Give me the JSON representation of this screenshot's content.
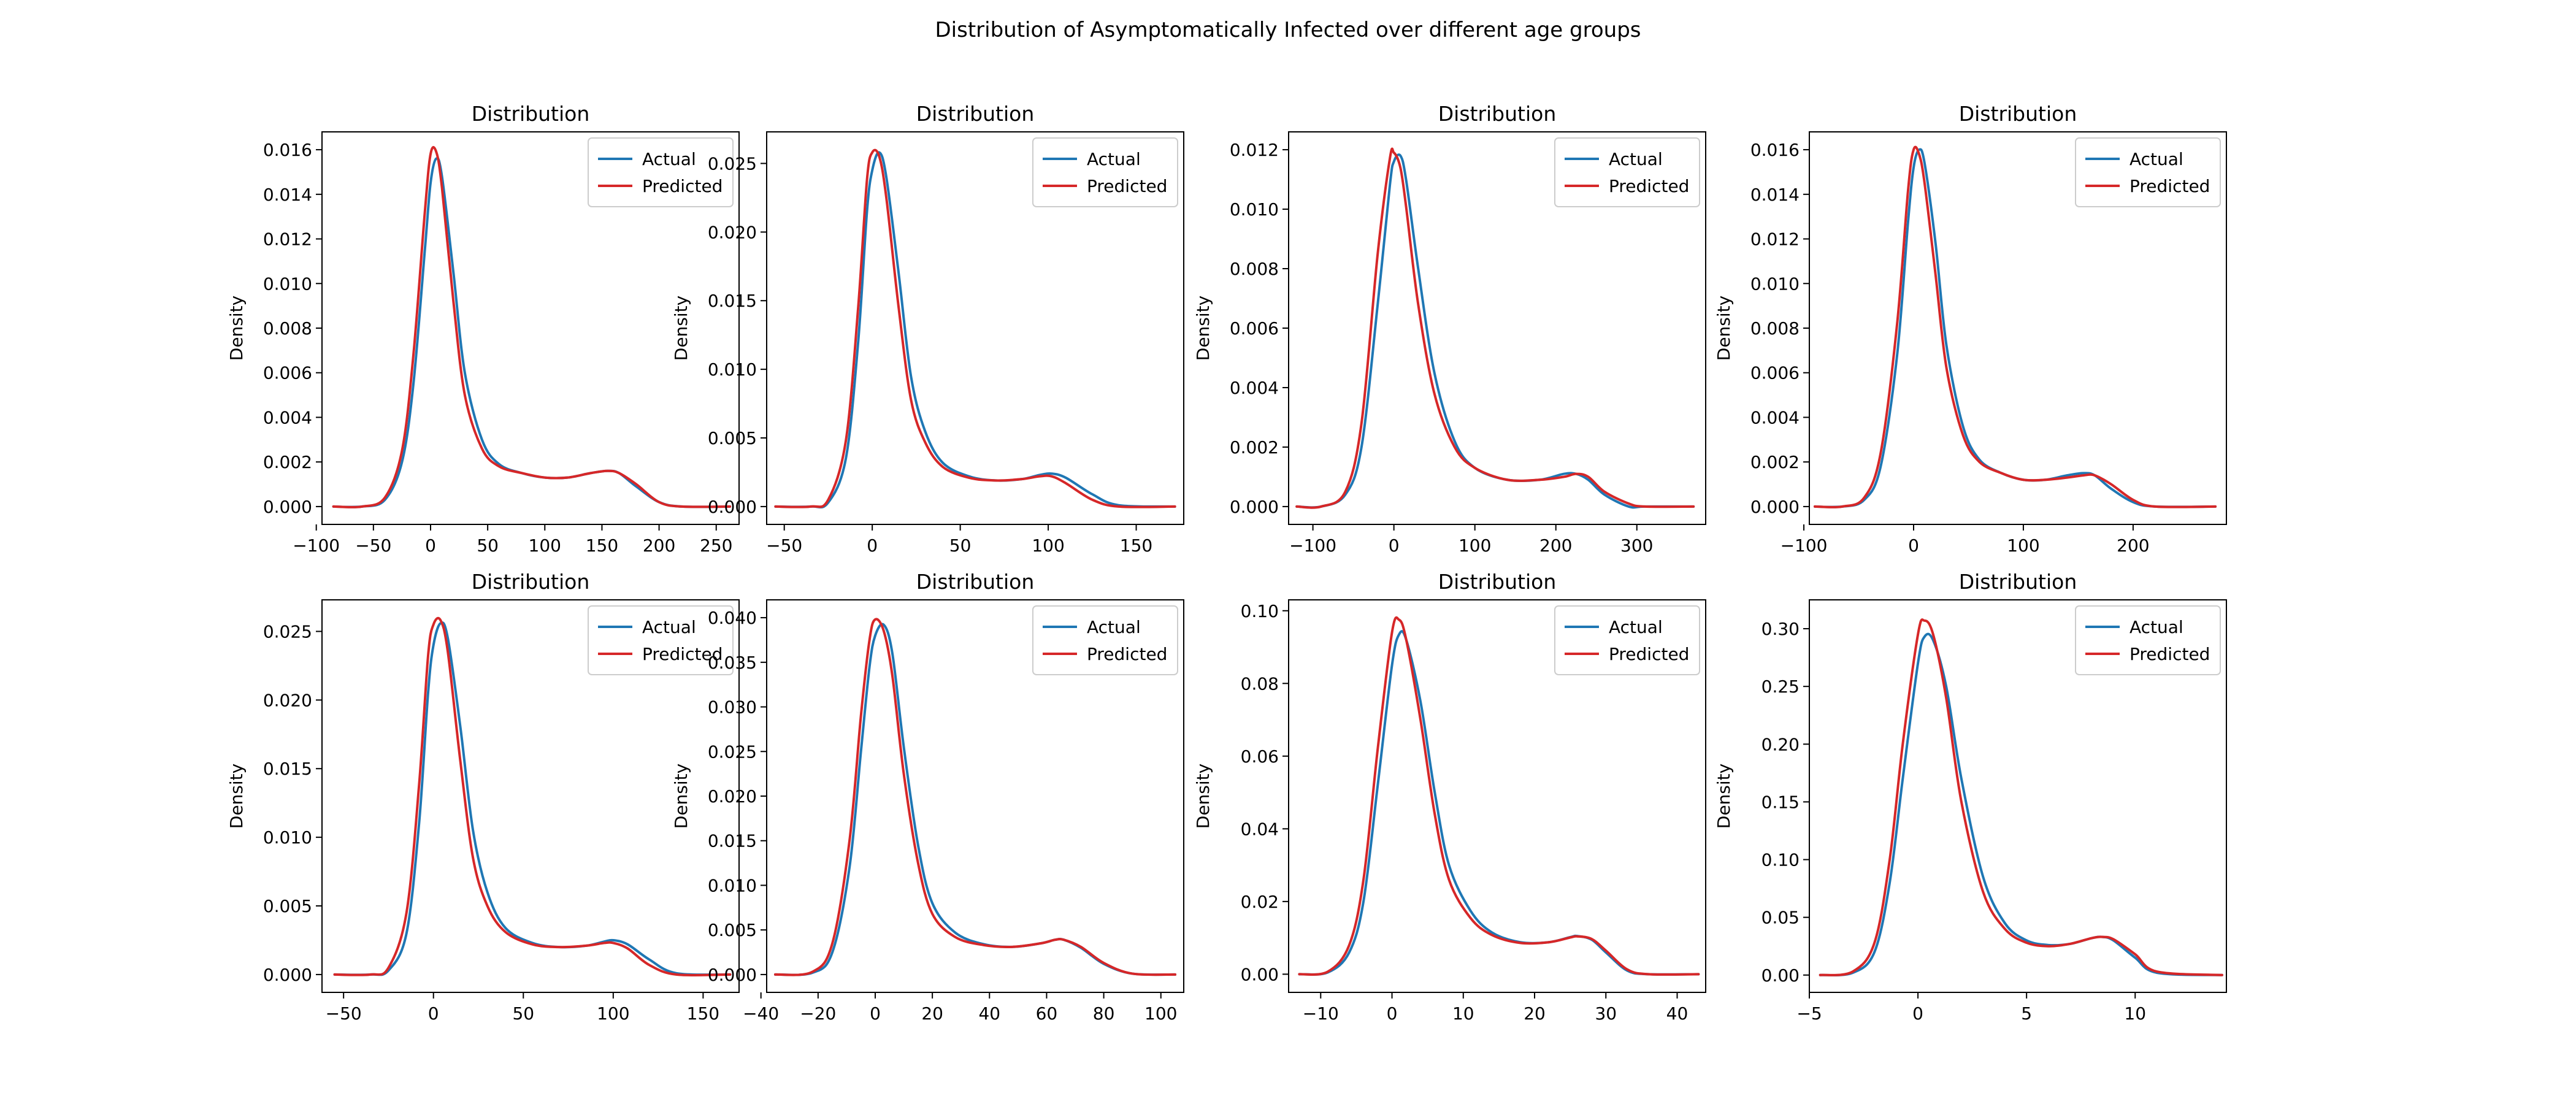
{
  "figure": {
    "title": "Distribution of Asymptomatically Infected over different age groups"
  },
  "colors": {
    "actual": "#1f77b4",
    "predicted": "#d62728"
  },
  "chart_data": [
    {
      "type": "line",
      "title": "Distribution",
      "xlabel": "",
      "ylabel": "Density",
      "xlim": [
        -95,
        270
      ],
      "ylim": [
        -0.0008,
        0.0168
      ],
      "xticks": [
        -100,
        -50,
        0,
        50,
        100,
        150,
        200,
        250
      ],
      "yticks": [
        0.0,
        0.002,
        0.004,
        0.006,
        0.008,
        0.01,
        0.012,
        0.014,
        0.016
      ],
      "ytick_labels": [
        "0.000",
        "0.002",
        "0.004",
        "0.006",
        "0.008",
        "0.010",
        "0.012",
        "0.014",
        "0.016"
      ],
      "legend": "top-right",
      "series": [
        {
          "name": "Actual",
          "x": [
            -85,
            -60,
            -40,
            -25,
            -15,
            -5,
            0,
            5,
            10,
            20,
            30,
            45,
            60,
            80,
            100,
            120,
            140,
            155,
            165,
            180,
            200,
            220,
            262
          ],
          "y": [
            0,
            0,
            0.0003,
            0.002,
            0.0055,
            0.0115,
            0.0145,
            0.0156,
            0.0148,
            0.0105,
            0.006,
            0.003,
            0.0019,
            0.0015,
            0.0013,
            0.0013,
            0.0015,
            0.0016,
            0.0015,
            0.0009,
            0.0002,
            0,
            0
          ]
        },
        {
          "name": "Predicted",
          "x": [
            -85,
            -60,
            -40,
            -25,
            -15,
            -5,
            0,
            5,
            10,
            20,
            30,
            45,
            60,
            80,
            100,
            120,
            140,
            155,
            165,
            180,
            200,
            220,
            262
          ],
          "y": [
            0,
            0,
            0.0004,
            0.0025,
            0.0068,
            0.0132,
            0.0158,
            0.0159,
            0.0143,
            0.0092,
            0.005,
            0.0026,
            0.0018,
            0.0015,
            0.0013,
            0.0013,
            0.0015,
            0.0016,
            0.0015,
            0.001,
            0.0002,
            0,
            0
          ]
        }
      ]
    },
    {
      "type": "line",
      "title": "Distribution",
      "xlabel": "",
      "ylabel": "Density",
      "xlim": [
        -60,
        177
      ],
      "ylim": [
        -0.0013,
        0.0273
      ],
      "xticks": [
        -50,
        0,
        50,
        100,
        150
      ],
      "yticks": [
        0.0,
        0.005,
        0.01,
        0.015,
        0.02,
        0.025
      ],
      "ytick_labels": [
        "0.000",
        "0.005",
        "0.010",
        "0.015",
        "0.020",
        "0.025"
      ],
      "legend": "top-right",
      "series": [
        {
          "name": "Actual",
          "x": [
            -55,
            -35,
            -25,
            -15,
            -8,
            -3,
            0,
            4,
            8,
            15,
            22,
            30,
            40,
            55,
            70,
            85,
            95,
            102,
            110,
            125,
            140,
            172
          ],
          "y": [
            0,
            0,
            0.0003,
            0.0035,
            0.012,
            0.0215,
            0.0245,
            0.0258,
            0.024,
            0.017,
            0.0095,
            0.0055,
            0.0032,
            0.0022,
            0.0019,
            0.002,
            0.0023,
            0.0024,
            0.0021,
            0.0009,
            0.0001,
            0
          ]
        },
        {
          "name": "Predicted",
          "x": [
            -55,
            -35,
            -25,
            -15,
            -8,
            -3,
            0,
            4,
            8,
            15,
            22,
            30,
            40,
            55,
            70,
            85,
            95,
            102,
            110,
            125,
            140,
            172
          ],
          "y": [
            0,
            0,
            0.0005,
            0.0048,
            0.0145,
            0.0238,
            0.0258,
            0.0255,
            0.0225,
            0.0145,
            0.0078,
            0.0047,
            0.0029,
            0.0021,
            0.0019,
            0.002,
            0.0022,
            0.0022,
            0.0017,
            0.0005,
            0,
            0
          ]
        }
      ]
    },
    {
      "type": "line",
      "title": "Distribution",
      "xlabel": "",
      "ylabel": "Density",
      "xlim": [
        -130,
        385
      ],
      "ylim": [
        -0.0006,
        0.0126
      ],
      "xticks": [
        -100,
        0,
        100,
        200,
        300
      ],
      "yticks": [
        0.0,
        0.002,
        0.004,
        0.006,
        0.008,
        0.01,
        0.012
      ],
      "ytick_labels": [
        "0.000",
        "0.002",
        "0.004",
        "0.006",
        "0.008",
        "0.010",
        "0.012"
      ],
      "legend": "top-right",
      "series": [
        {
          "name": "Actual",
          "x": [
            -120,
            -90,
            -60,
            -40,
            -20,
            -5,
            0,
            8,
            15,
            30,
            50,
            75,
            100,
            140,
            180,
            210,
            225,
            240,
            260,
            290,
            310,
            370
          ],
          "y": [
            0,
            0,
            0.0004,
            0.002,
            0.0068,
            0.0108,
            0.0116,
            0.0118,
            0.011,
            0.008,
            0.0045,
            0.0022,
            0.0013,
            0.0009,
            0.0009,
            0.0011,
            0.0011,
            0.0009,
            0.0004,
            0,
            0,
            0
          ]
        },
        {
          "name": "Predicted",
          "x": [
            -120,
            -90,
            -60,
            -40,
            -20,
            -5,
            0,
            8,
            15,
            30,
            50,
            75,
            100,
            140,
            180,
            210,
            225,
            240,
            260,
            290,
            310,
            370
          ],
          "y": [
            0,
            0,
            0.0005,
            0.0028,
            0.0085,
            0.0117,
            0.0119,
            0.0114,
            0.0101,
            0.0068,
            0.0038,
            0.002,
            0.0013,
            0.0009,
            0.0009,
            0.001,
            0.0011,
            0.001,
            0.0005,
            0.0001,
            0,
            0
          ]
        }
      ]
    },
    {
      "type": "line",
      "title": "Distribution",
      "xlabel": "",
      "ylabel": "Density",
      "xlim": [
        -95,
        285
      ],
      "ylim": [
        -0.0008,
        0.0168
      ],
      "xticks": [
        -100,
        0,
        100,
        200
      ],
      "yticks": [
        0.0,
        0.002,
        0.004,
        0.006,
        0.008,
        0.01,
        0.012,
        0.014,
        0.016
      ],
      "ytick_labels": [
        "0.000",
        "0.002",
        "0.004",
        "0.006",
        "0.008",
        "0.010",
        "0.012",
        "0.014",
        "0.016"
      ],
      "legend": "top-right",
      "series": [
        {
          "name": "Actual",
          "x": [
            -90,
            -65,
            -45,
            -30,
            -15,
            -5,
            0,
            5,
            10,
            20,
            30,
            45,
            60,
            80,
            100,
            120,
            140,
            155,
            165,
            180,
            200,
            220,
            275
          ],
          "y": [
            0,
            0,
            0.0003,
            0.0018,
            0.0068,
            0.0128,
            0.0152,
            0.016,
            0.0154,
            0.0118,
            0.0072,
            0.0036,
            0.0021,
            0.0015,
            0.0012,
            0.0012,
            0.0014,
            0.0015,
            0.0014,
            0.0008,
            0.0002,
            0,
            0
          ]
        },
        {
          "name": "Predicted",
          "x": [
            -90,
            -65,
            -45,
            -30,
            -15,
            -5,
            0,
            5,
            10,
            20,
            30,
            45,
            60,
            80,
            100,
            120,
            140,
            155,
            165,
            180,
            200,
            220,
            275
          ],
          "y": [
            0,
            0,
            0.0004,
            0.0024,
            0.0082,
            0.0142,
            0.016,
            0.0158,
            0.0145,
            0.0104,
            0.0062,
            0.0032,
            0.002,
            0.0015,
            0.0012,
            0.0012,
            0.0013,
            0.0014,
            0.0014,
            0.001,
            0.0003,
            0,
            0
          ]
        }
      ]
    },
    {
      "type": "line",
      "title": "Distribution",
      "xlabel": "",
      "ylabel": "Density",
      "xlim": [
        -62,
        170
      ],
      "ylim": [
        -0.0013,
        0.0273
      ],
      "xticks": [
        -50,
        0,
        50,
        100,
        150
      ],
      "yticks": [
        0.0,
        0.005,
        0.01,
        0.015,
        0.02,
        0.025
      ],
      "ytick_labels": [
        "0.000",
        "0.005",
        "0.010",
        "0.015",
        "0.020",
        "0.025"
      ],
      "legend": "top-right",
      "series": [
        {
          "name": "Actual",
          "x": [
            -55,
            -35,
            -25,
            -15,
            -8,
            -3,
            0,
            4,
            8,
            15,
            22,
            30,
            40,
            55,
            70,
            85,
            95,
            100,
            108,
            120,
            135,
            165
          ],
          "y": [
            0,
            0,
            0.0003,
            0.003,
            0.011,
            0.0205,
            0.024,
            0.0256,
            0.0245,
            0.018,
            0.0105,
            0.006,
            0.0034,
            0.0023,
            0.002,
            0.0021,
            0.0024,
            0.0025,
            0.0022,
            0.0011,
            0.0001,
            0
          ]
        },
        {
          "name": "Predicted",
          "x": [
            -55,
            -35,
            -25,
            -15,
            -8,
            -3,
            0,
            4,
            8,
            15,
            22,
            30,
            40,
            55,
            70,
            85,
            95,
            100,
            108,
            120,
            135,
            165
          ],
          "y": [
            0,
            0,
            0.0005,
            0.0045,
            0.0138,
            0.0232,
            0.0255,
            0.0258,
            0.0235,
            0.0155,
            0.0085,
            0.005,
            0.0031,
            0.0022,
            0.002,
            0.0021,
            0.0023,
            0.0023,
            0.0019,
            0.0007,
            0,
            0
          ]
        }
      ]
    },
    {
      "type": "line",
      "title": "Distribution",
      "xlabel": "",
      "ylabel": "Density",
      "xlim": [
        -38,
        108
      ],
      "ylim": [
        -0.002,
        0.042
      ],
      "xticks": [
        -40,
        -20,
        0,
        20,
        40,
        60,
        80,
        100
      ],
      "yticks": [
        0.0,
        0.005,
        0.01,
        0.015,
        0.02,
        0.025,
        0.03,
        0.035,
        0.04
      ],
      "ytick_labels": [
        "0.000",
        "0.005",
        "0.010",
        "0.015",
        "0.020",
        "0.025",
        "0.030",
        "0.035",
        "0.040"
      ],
      "legend": "top-right",
      "series": [
        {
          "name": "Actual",
          "x": [
            -35,
            -22,
            -15,
            -9,
            -5,
            -2,
            0,
            3,
            6,
            10,
            15,
            20,
            28,
            38,
            48,
            58,
            63,
            66,
            72,
            80,
            90,
            105
          ],
          "y": [
            0,
            0.0002,
            0.0025,
            0.012,
            0.025,
            0.0345,
            0.038,
            0.0392,
            0.036,
            0.0255,
            0.0145,
            0.008,
            0.0047,
            0.0034,
            0.0031,
            0.0035,
            0.0039,
            0.0039,
            0.003,
            0.0012,
            0.0001,
            0
          ]
        },
        {
          "name": "Predicted",
          "x": [
            -35,
            -22,
            -15,
            -9,
            -5,
            -2,
            0,
            3,
            6,
            10,
            15,
            20,
            28,
            38,
            48,
            58,
            63,
            66,
            72,
            80,
            90,
            105
          ],
          "y": [
            0,
            0.0003,
            0.0035,
            0.015,
            0.029,
            0.0375,
            0.0398,
            0.0385,
            0.0335,
            0.0225,
            0.0125,
            0.0068,
            0.0042,
            0.0033,
            0.0031,
            0.0035,
            0.0039,
            0.0039,
            0.0031,
            0.0013,
            0.0001,
            0
          ]
        }
      ]
    },
    {
      "type": "line",
      "title": "Distribution",
      "xlabel": "",
      "ylabel": "Density",
      "xlim": [
        -14.5,
        44
      ],
      "ylim": [
        -0.005,
        0.103
      ],
      "xticks": [
        -10,
        0,
        10,
        20,
        30,
        40
      ],
      "yticks": [
        0.0,
        0.02,
        0.04,
        0.06,
        0.08,
        0.1
      ],
      "ytick_labels": [
        "0.00",
        "0.02",
        "0.04",
        "0.06",
        "0.08",
        "0.10"
      ],
      "legend": "top-right",
      "series": [
        {
          "name": "Actual",
          "x": [
            -13,
            -9,
            -6,
            -4,
            -2,
            0,
            1,
            2,
            4,
            6,
            8,
            11,
            14,
            18,
            22,
            25,
            26,
            28,
            30,
            33,
            36,
            43
          ],
          "y": [
            0,
            0.0005,
            0.006,
            0.02,
            0.052,
            0.085,
            0.0935,
            0.092,
            0.075,
            0.05,
            0.03,
            0.0175,
            0.0115,
            0.0088,
            0.0088,
            0.0102,
            0.0105,
            0.0095,
            0.006,
            0.001,
            0,
            0
          ]
        },
        {
          "name": "Predicted",
          "x": [
            -13,
            -9,
            -6,
            -4,
            -2,
            0,
            1,
            2,
            4,
            6,
            8,
            11,
            14,
            18,
            22,
            25,
            26,
            28,
            30,
            33,
            36,
            43
          ],
          "y": [
            0,
            0.0007,
            0.008,
            0.026,
            0.062,
            0.094,
            0.0975,
            0.092,
            0.07,
            0.044,
            0.026,
            0.0155,
            0.0108,
            0.0086,
            0.0088,
            0.0101,
            0.0104,
            0.0097,
            0.0065,
            0.0013,
            0,
            0
          ]
        }
      ]
    },
    {
      "type": "line",
      "title": "Distribution",
      "xlabel": "",
      "ylabel": "Density",
      "xlim": [
        -5,
        14.2
      ],
      "ylim": [
        -0.015,
        0.325
      ],
      "xticks": [
        -5,
        0,
        5,
        10
      ],
      "yticks": [
        0.0,
        0.05,
        0.1,
        0.15,
        0.2,
        0.25,
        0.3
      ],
      "ytick_labels": [
        "0.00",
        "0.05",
        "0.10",
        "0.15",
        "0.20",
        "0.25",
        "0.30"
      ],
      "legend": "top-right",
      "series": [
        {
          "name": "Actual",
          "x": [
            -4.5,
            -3,
            -2,
            -1.3,
            -0.7,
            0,
            0.3,
            0.7,
            1.3,
            2,
            3,
            4,
            5,
            6,
            7,
            8,
            8.5,
            9,
            10,
            11,
            14
          ],
          "y": [
            0,
            0.002,
            0.02,
            0.08,
            0.17,
            0.27,
            0.293,
            0.29,
            0.25,
            0.17,
            0.085,
            0.045,
            0.03,
            0.026,
            0.027,
            0.032,
            0.033,
            0.03,
            0.015,
            0.002,
            0
          ]
        },
        {
          "name": "Predicted",
          "x": [
            -4.5,
            -3,
            -2,
            -1.3,
            -0.7,
            0,
            0.3,
            0.7,
            1.3,
            2,
            3,
            4,
            5,
            6,
            7,
            8,
            8.5,
            9,
            10,
            11,
            14
          ],
          "y": [
            0,
            0.003,
            0.028,
            0.1,
            0.2,
            0.295,
            0.307,
            0.295,
            0.24,
            0.15,
            0.072,
            0.04,
            0.028,
            0.025,
            0.027,
            0.032,
            0.033,
            0.031,
            0.018,
            0.003,
            0
          ]
        }
      ]
    }
  ]
}
